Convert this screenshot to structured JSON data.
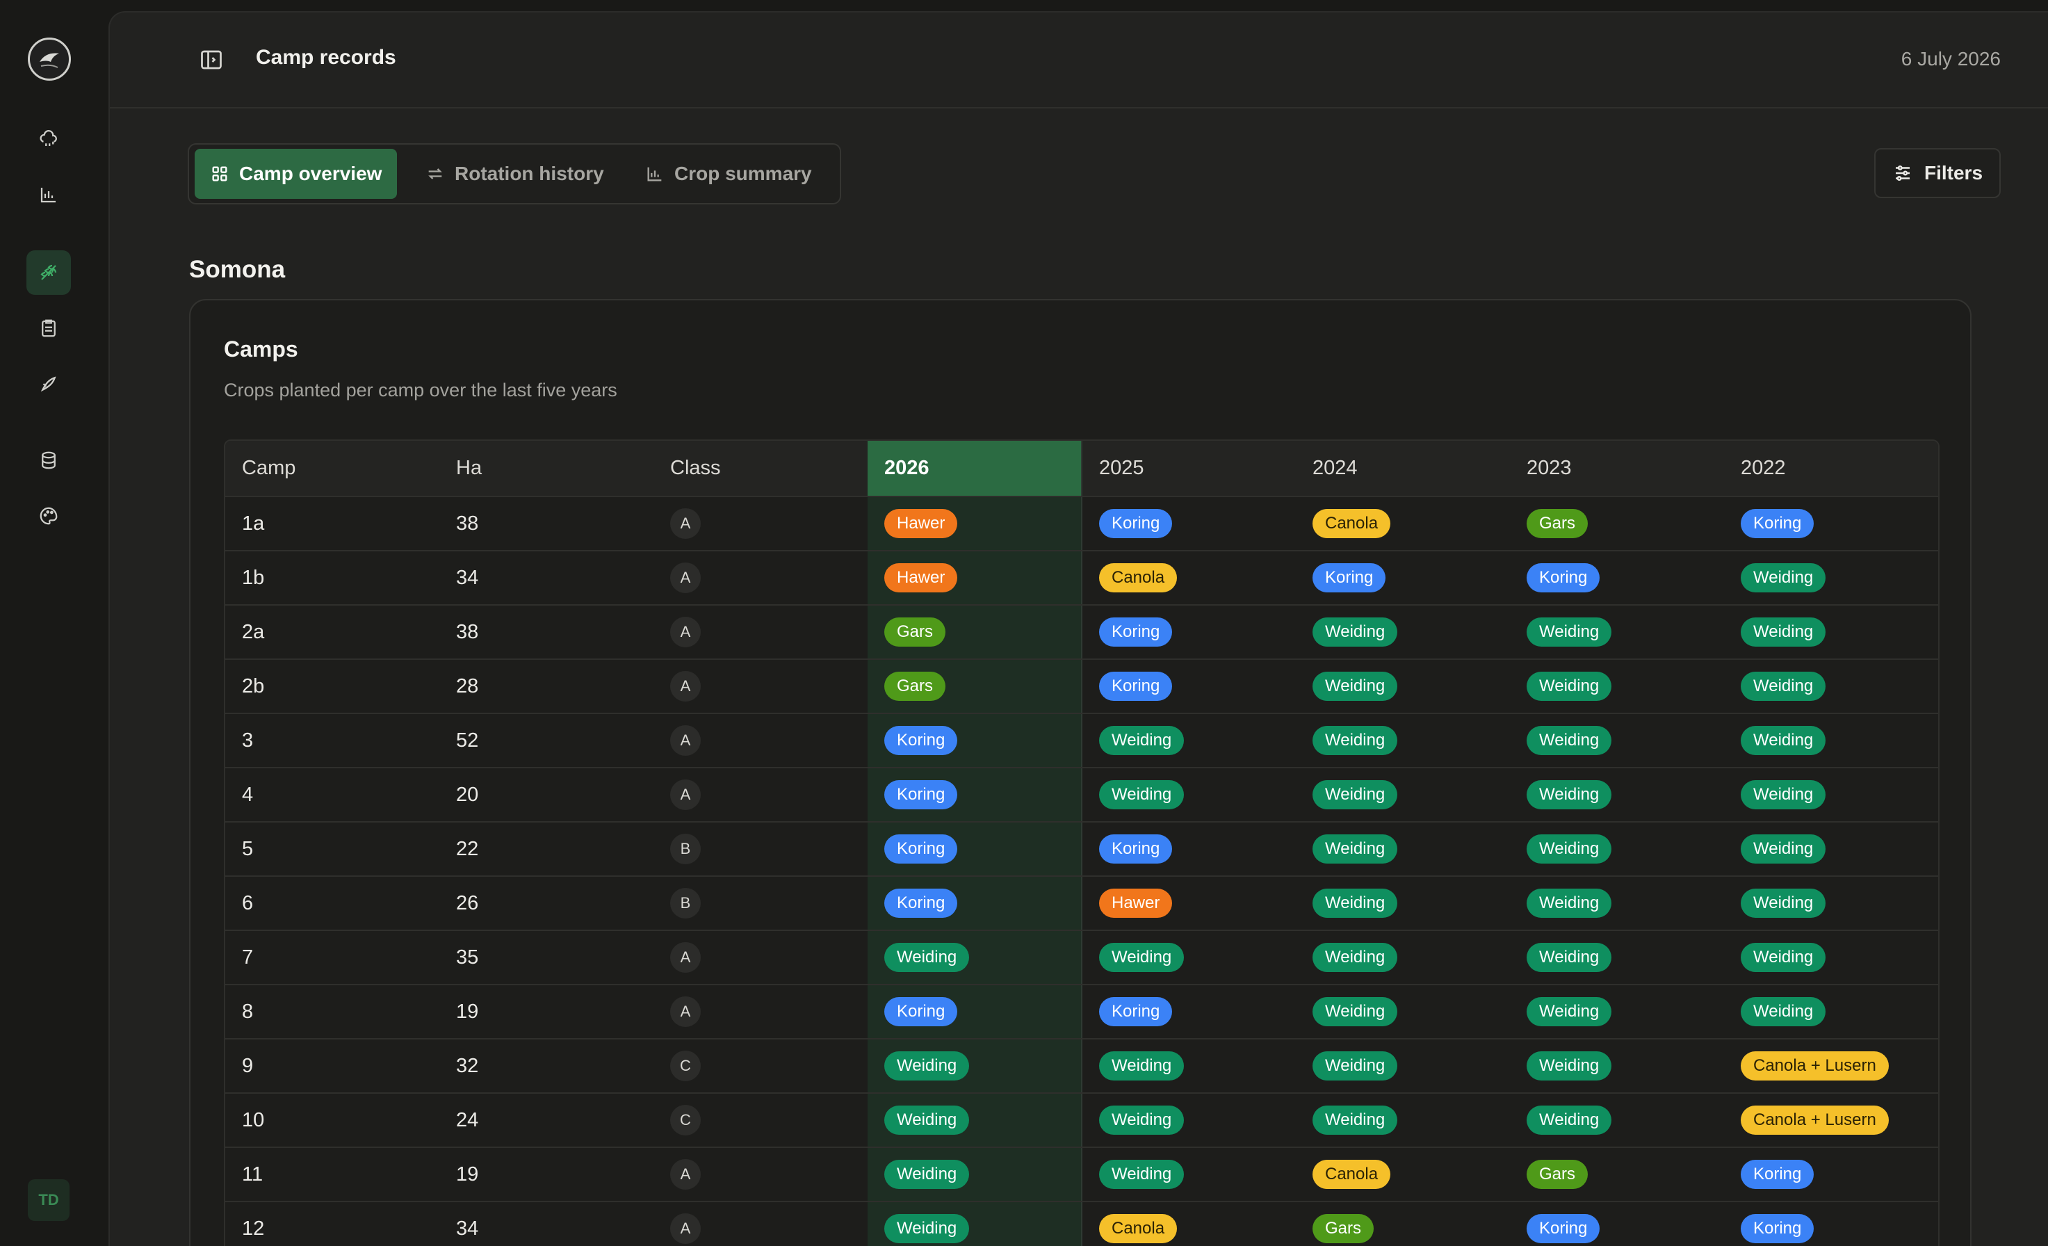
{
  "header": {
    "title": "Camp records",
    "date": "6 July 2026"
  },
  "tabs": [
    {
      "label": "Camp overview",
      "icon": "grid-icon",
      "active": true
    },
    {
      "label": "Rotation history",
      "icon": "swap-icon",
      "active": false
    },
    {
      "label": "Crop summary",
      "icon": "bar-chart-icon",
      "active": false
    }
  ],
  "filters_label": "Filters",
  "farm_name": "Somona",
  "card": {
    "title": "Camps",
    "description": "Crops planted per camp over the last five years"
  },
  "sidebar": {
    "avatar_initials": "TD",
    "items": [
      {
        "name": "weather-icon"
      },
      {
        "name": "chart-icon"
      },
      {
        "name": "wheat-icon",
        "active": true
      },
      {
        "name": "clipboard-icon"
      },
      {
        "name": "tractor-icon"
      },
      {
        "name": "database-icon"
      },
      {
        "name": "palette-icon"
      }
    ]
  },
  "table": {
    "columns": [
      "Camp",
      "Ha",
      "Class",
      "2026",
      "2025",
      "2024",
      "2023",
      "2022"
    ],
    "highlight_column": "2026",
    "rows": [
      {
        "camp": "1a",
        "ha": "38",
        "class": "A",
        "crops": [
          "Hawer",
          "Koring",
          "Canola",
          "Gars",
          "Koring"
        ]
      },
      {
        "camp": "1b",
        "ha": "34",
        "class": "A",
        "crops": [
          "Hawer",
          "Canola",
          "Koring",
          "Koring",
          "Weiding"
        ]
      },
      {
        "camp": "2a",
        "ha": "38",
        "class": "A",
        "crops": [
          "Gars",
          "Koring",
          "Weiding",
          "Weiding",
          "Weiding"
        ]
      },
      {
        "camp": "2b",
        "ha": "28",
        "class": "A",
        "crops": [
          "Gars",
          "Koring",
          "Weiding",
          "Weiding",
          "Weiding"
        ]
      },
      {
        "camp": "3",
        "ha": "52",
        "class": "A",
        "crops": [
          "Koring",
          "Weiding",
          "Weiding",
          "Weiding",
          "Weiding"
        ]
      },
      {
        "camp": "4",
        "ha": "20",
        "class": "A",
        "crops": [
          "Koring",
          "Weiding",
          "Weiding",
          "Weiding",
          "Weiding"
        ]
      },
      {
        "camp": "5",
        "ha": "22",
        "class": "B",
        "crops": [
          "Koring",
          "Koring",
          "Weiding",
          "Weiding",
          "Weiding"
        ]
      },
      {
        "camp": "6",
        "ha": "26",
        "class": "B",
        "crops": [
          "Koring",
          "Hawer",
          "Weiding",
          "Weiding",
          "Weiding"
        ]
      },
      {
        "camp": "7",
        "ha": "35",
        "class": "A",
        "crops": [
          "Weiding",
          "Weiding",
          "Weiding",
          "Weiding",
          "Weiding"
        ]
      },
      {
        "camp": "8",
        "ha": "19",
        "class": "A",
        "crops": [
          "Koring",
          "Koring",
          "Weiding",
          "Weiding",
          "Weiding"
        ]
      },
      {
        "camp": "9",
        "ha": "32",
        "class": "C",
        "crops": [
          "Weiding",
          "Weiding",
          "Weiding",
          "Weiding",
          "Canola + Lusern"
        ]
      },
      {
        "camp": "10",
        "ha": "24",
        "class": "C",
        "crops": [
          "Weiding",
          "Weiding",
          "Weiding",
          "Weiding",
          "Canola + Lusern"
        ]
      },
      {
        "camp": "11",
        "ha": "19",
        "class": "A",
        "crops": [
          "Weiding",
          "Weiding",
          "Canola",
          "Gars",
          "Koring"
        ]
      },
      {
        "camp": "12",
        "ha": "34",
        "class": "A",
        "crops": [
          "Weiding",
          "Canola",
          "Gars",
          "Koring",
          "Koring"
        ]
      }
    ]
  },
  "crop_colors": {
    "Hawer": "#f1761b",
    "Koring": "#3b82f6",
    "Canola": "#f5c02a",
    "Gars": "#4f9a19",
    "Weiding": "#0f8f5f",
    "Canola + Lusern": "#f5c02a"
  }
}
